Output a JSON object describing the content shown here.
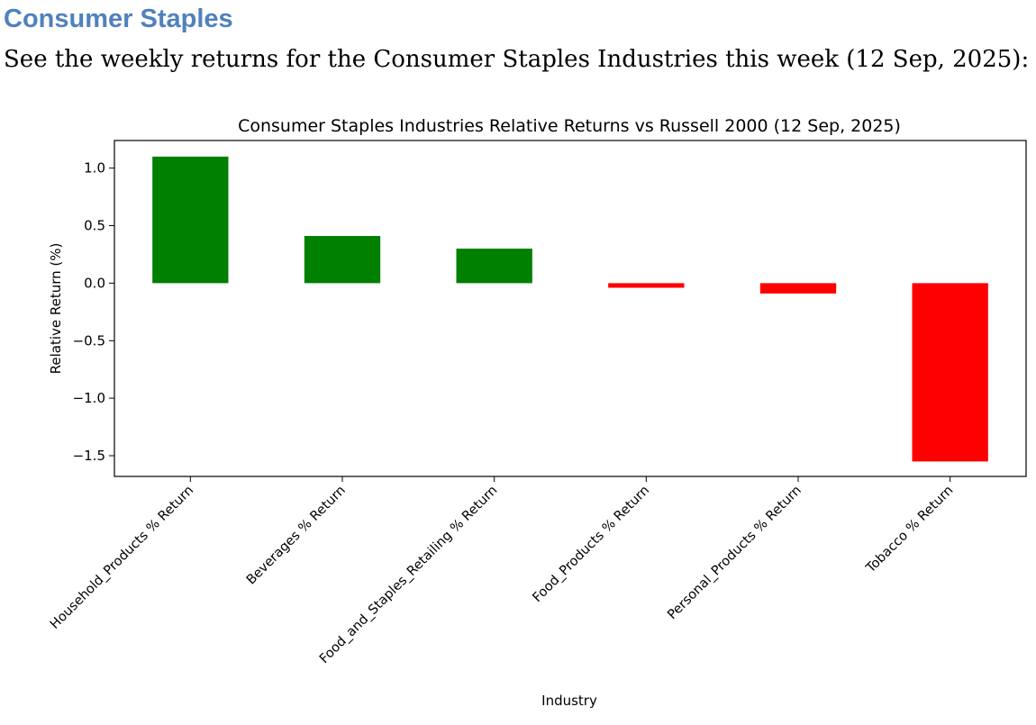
{
  "document": {
    "heading": "Consumer Staples",
    "intro": "See the weekly returns for the Consumer Staples Industries this week (12 Sep, 2025):"
  },
  "colors": {
    "heading": "#4f81bd",
    "positive": "#008000",
    "negative": "#ff0000"
  },
  "chart_data": {
    "type": "bar",
    "title": "Consumer Staples Industries Relative Returns vs Russell 2000 (12 Sep, 2025)",
    "xlabel": "Industry",
    "ylabel": "Relative Return (%)",
    "categories": [
      "Household_Products % Return",
      "Beverages % Return",
      "Food_and_Staples_Retailing % Return",
      "Food_Products % Return",
      "Personal_Products % Return",
      "Tobacco % Return"
    ],
    "values": [
      1.1,
      0.41,
      0.3,
      -0.04,
      -0.09,
      -1.55
    ],
    "ylim": [
      -1.68,
      1.24
    ],
    "yticks": [
      1.0,
      0.5,
      0.0,
      -0.5,
      -1.0,
      -1.5
    ],
    "ytick_labels": [
      "1.0",
      "0.5",
      "0.0",
      "−0.5",
      "−1.0",
      "−1.5"
    ],
    "grid": false,
    "legend": "none"
  }
}
